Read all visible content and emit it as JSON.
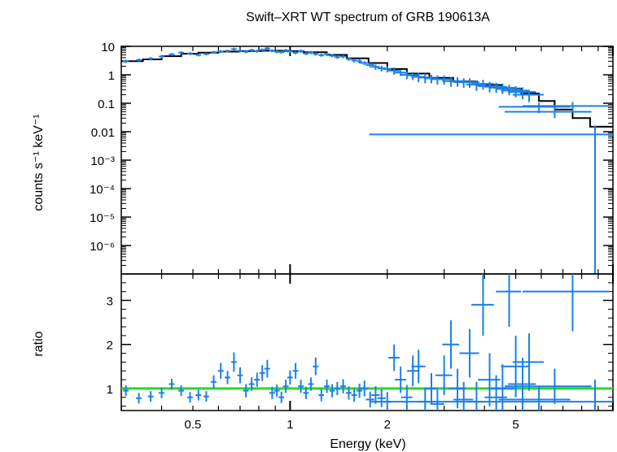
{
  "chart_data": [
    {
      "type": "scatter",
      "title": "Swift–XRT WT spectrum of GRB 190613A",
      "ylabel": "counts s⁻¹ keV⁻¹",
      "xlabel": "",
      "xscale": "log",
      "yscale": "log",
      "xlim": [
        0.3,
        10
      ],
      "ylim": [
        1e-07,
        10
      ],
      "y_tick_labels": [
        "10",
        "1",
        "0.1",
        "0.01",
        "10⁻³",
        "10⁻⁴",
        "10⁻⁵",
        "10⁻⁶"
      ],
      "y_tick_values": [
        10,
        1,
        0.1,
        0.01,
        0.001,
        0.0001,
        1e-05,
        1e-06
      ],
      "colors": {
        "data": "#1a7fe8",
        "model": "#000000"
      },
      "series": [
        {
          "kind": "data",
          "points": [
            [
              0.31,
              3.0,
              0.02,
              0.4
            ],
            [
              0.34,
              3.3,
              0.02,
              0.4
            ],
            [
              0.37,
              3.7,
              0.02,
              0.5
            ],
            [
              0.4,
              4.4,
              0.02,
              0.6
            ],
            [
              0.43,
              5.2,
              0.02,
              0.6
            ],
            [
              0.46,
              6.0,
              0.02,
              0.7
            ],
            [
              0.49,
              5.6,
              0.02,
              0.7
            ],
            [
              0.52,
              5.0,
              0.02,
              0.6
            ],
            [
              0.55,
              5.4,
              0.02,
              0.6
            ],
            [
              0.58,
              6.2,
              0.02,
              0.7
            ],
            [
              0.61,
              6.6,
              0.02,
              0.8
            ],
            [
              0.64,
              6.9,
              0.02,
              0.8
            ],
            [
              0.67,
              8.0,
              0.02,
              1.0
            ],
            [
              0.7,
              7.0,
              0.02,
              0.9
            ],
            [
              0.73,
              6.5,
              0.02,
              0.8
            ],
            [
              0.76,
              7.3,
              0.02,
              0.9
            ],
            [
              0.79,
              6.8,
              0.02,
              0.8
            ],
            [
              0.82,
              7.5,
              0.02,
              0.9
            ],
            [
              0.85,
              8.4,
              0.02,
              1.0
            ],
            [
              0.88,
              7.0,
              0.02,
              0.8
            ],
            [
              0.91,
              6.5,
              0.02,
              0.8
            ],
            [
              0.94,
              6.3,
              0.02,
              0.8
            ],
            [
              0.97,
              7.2,
              0.02,
              0.9
            ],
            [
              1.0,
              6.6,
              0.02,
              0.8
            ],
            [
              1.04,
              6.0,
              0.02,
              0.8
            ],
            [
              1.08,
              6.8,
              0.02,
              0.9
            ],
            [
              1.12,
              5.6,
              0.02,
              0.7
            ],
            [
              1.16,
              6.1,
              0.02,
              0.8
            ],
            [
              1.2,
              5.4,
              0.02,
              0.7
            ],
            [
              1.25,
              4.9,
              0.02,
              0.6
            ],
            [
              1.3,
              5.3,
              0.02,
              0.7
            ],
            [
              1.35,
              4.7,
              0.02,
              0.6
            ],
            [
              1.4,
              4.2,
              0.02,
              0.6
            ],
            [
              1.46,
              4.4,
              0.02,
              0.6
            ],
            [
              1.52,
              3.6,
              0.02,
              0.5
            ],
            [
              1.58,
              3.2,
              0.02,
              0.5
            ],
            [
              1.64,
              3.0,
              0.02,
              0.5
            ],
            [
              1.7,
              2.6,
              0.03,
              0.4
            ],
            [
              1.77,
              2.2,
              0.03,
              0.4
            ],
            [
              1.84,
              1.9,
              0.03,
              0.4
            ],
            [
              1.92,
              1.7,
              0.03,
              0.4
            ],
            [
              2.0,
              1.6,
              0.03,
              0.4
            ],
            [
              2.1,
              1.4,
              0.04,
              0.4
            ],
            [
              2.2,
              1.2,
              0.04,
              0.3
            ],
            [
              2.3,
              1.0,
              0.04,
              0.3
            ],
            [
              2.4,
              0.95,
              0.04,
              0.3
            ],
            [
              2.5,
              0.85,
              0.05,
              0.3
            ],
            [
              2.62,
              0.8,
              0.05,
              0.3
            ],
            [
              2.74,
              0.75,
              0.05,
              0.25
            ],
            [
              2.86,
              0.7,
              0.05,
              0.25
            ],
            [
              3.0,
              0.7,
              0.06,
              0.25
            ],
            [
              3.15,
              0.6,
              0.06,
              0.22
            ],
            [
              3.3,
              0.6,
              0.06,
              0.22
            ],
            [
              3.45,
              0.55,
              0.07,
              0.2
            ],
            [
              3.6,
              0.55,
              0.07,
              0.2
            ],
            [
              3.78,
              0.45,
              0.07,
              0.18
            ],
            [
              3.96,
              0.48,
              0.08,
              0.18
            ],
            [
              4.15,
              0.4,
              0.08,
              0.16
            ],
            [
              4.35,
              0.38,
              0.08,
              0.15
            ],
            [
              4.55,
              0.35,
              0.09,
              0.14
            ],
            [
              4.77,
              0.32,
              0.09,
              0.13
            ],
            [
              5.0,
              0.28,
              0.1,
              0.12
            ],
            [
              5.25,
              0.25,
              0.1,
              0.11
            ],
            [
              5.5,
              0.2,
              0.11,
              0.09
            ],
            [
              5.9,
              0.075,
              0.25,
              0.03
            ],
            [
              6.6,
              0.05,
              0.3,
              0.02
            ],
            [
              7.5,
              0.08,
              0.3,
              0.03
            ],
            [
              8.8,
              0.008,
              0.8,
              0.008
            ]
          ]
        },
        {
          "kind": "model",
          "steps": [
            [
              0.3,
              3.0
            ],
            [
              0.35,
              3.5
            ],
            [
              0.4,
              4.5
            ],
            [
              0.46,
              5.5
            ],
            [
              0.52,
              6.0
            ],
            [
              0.6,
              6.5
            ],
            [
              0.7,
              6.8
            ],
            [
              0.82,
              7.0
            ],
            [
              0.95,
              6.8
            ],
            [
              1.1,
              6.2
            ],
            [
              1.3,
              5.0
            ],
            [
              1.5,
              3.8
            ],
            [
              1.75,
              2.6
            ],
            [
              2.0,
              1.6
            ],
            [
              2.3,
              1.1
            ],
            [
              2.7,
              0.78
            ],
            [
              3.2,
              0.58
            ],
            [
              3.8,
              0.44
            ],
            [
              4.5,
              0.33
            ],
            [
              5.2,
              0.22
            ],
            [
              5.9,
              0.12
            ],
            [
              6.6,
              0.06
            ],
            [
              7.5,
              0.03
            ],
            [
              8.5,
              0.015
            ],
            [
              10.0,
              0.012
            ]
          ]
        }
      ]
    },
    {
      "type": "scatter",
      "title": "",
      "ylabel": "ratio",
      "xlabel": "Energy (keV)",
      "xscale": "log",
      "yscale": "linear",
      "xlim": [
        0.3,
        10
      ],
      "ylim": [
        0.5,
        3.6
      ],
      "x_tick_labels": [
        "0.5",
        "1",
        "2",
        "5"
      ],
      "x_tick_values": [
        0.5,
        1,
        2,
        5
      ],
      "y_tick_labels": [
        "1",
        "2",
        "3"
      ],
      "y_tick_values": [
        1,
        2,
        3
      ],
      "colors": {
        "data": "#1a7fe8",
        "reference": "#22dd22"
      },
      "reference_line": 1,
      "series": [
        {
          "kind": "data",
          "points": [
            [
              0.31,
              0.95,
              0.02,
              0.12
            ],
            [
              0.34,
              0.78,
              0.02,
              0.12
            ],
            [
              0.37,
              0.82,
              0.02,
              0.12
            ],
            [
              0.4,
              0.9,
              0.02,
              0.12
            ],
            [
              0.43,
              1.1,
              0.02,
              0.12
            ],
            [
              0.46,
              0.95,
              0.02,
              0.12
            ],
            [
              0.49,
              0.8,
              0.02,
              0.12
            ],
            [
              0.52,
              0.85,
              0.02,
              0.12
            ],
            [
              0.55,
              0.82,
              0.02,
              0.12
            ],
            [
              0.58,
              1.15,
              0.02,
              0.15
            ],
            [
              0.61,
              1.4,
              0.02,
              0.18
            ],
            [
              0.64,
              1.25,
              0.02,
              0.15
            ],
            [
              0.67,
              1.6,
              0.02,
              0.22
            ],
            [
              0.7,
              1.3,
              0.02,
              0.18
            ],
            [
              0.73,
              0.95,
              0.02,
              0.15
            ],
            [
              0.76,
              1.1,
              0.02,
              0.15
            ],
            [
              0.79,
              1.2,
              0.02,
              0.16
            ],
            [
              0.82,
              1.35,
              0.02,
              0.18
            ],
            [
              0.85,
              1.45,
              0.02,
              0.2
            ],
            [
              0.88,
              0.9,
              0.02,
              0.14
            ],
            [
              0.91,
              0.95,
              0.02,
              0.14
            ],
            [
              0.94,
              0.8,
              0.02,
              0.13
            ],
            [
              0.97,
              1.05,
              0.02,
              0.15
            ],
            [
              1.0,
              1.25,
              0.02,
              0.16
            ],
            [
              1.04,
              1.4,
              0.02,
              0.18
            ],
            [
              1.08,
              1.05,
              0.02,
              0.15
            ],
            [
              1.12,
              0.9,
              0.02,
              0.14
            ],
            [
              1.16,
              1.1,
              0.02,
              0.15
            ],
            [
              1.2,
              1.5,
              0.02,
              0.2
            ],
            [
              1.25,
              0.85,
              0.02,
              0.14
            ],
            [
              1.3,
              1.05,
              0.02,
              0.15
            ],
            [
              1.35,
              0.95,
              0.02,
              0.15
            ],
            [
              1.4,
              1.0,
              0.02,
              0.15
            ],
            [
              1.46,
              1.05,
              0.02,
              0.16
            ],
            [
              1.52,
              0.9,
              0.02,
              0.15
            ],
            [
              1.58,
              0.85,
              0.02,
              0.15
            ],
            [
              1.64,
              0.95,
              0.02,
              0.16
            ],
            [
              1.7,
              1.0,
              0.03,
              0.18
            ],
            [
              1.77,
              0.75,
              0.03,
              0.18
            ],
            [
              1.84,
              0.85,
              0.03,
              0.2
            ],
            [
              1.92,
              0.78,
              0.03,
              0.2
            ],
            [
              2.0,
              0.7,
              0.03,
              0.22
            ],
            [
              2.1,
              1.7,
              0.04,
              0.3
            ],
            [
              2.2,
              1.2,
              0.04,
              0.3
            ],
            [
              2.3,
              0.8,
              0.04,
              0.28
            ],
            [
              2.4,
              1.4,
              0.04,
              0.35
            ],
            [
              2.5,
              1.5,
              0.05,
              0.38
            ],
            [
              2.62,
              0.7,
              0.05,
              0.3
            ],
            [
              2.74,
              1.0,
              0.05,
              0.35
            ],
            [
              2.86,
              0.65,
              0.05,
              0.32
            ],
            [
              3.0,
              1.3,
              0.06,
              0.45
            ],
            [
              3.15,
              2.0,
              0.06,
              0.55
            ],
            [
              3.3,
              1.0,
              0.06,
              0.45
            ],
            [
              3.45,
              0.75,
              0.07,
              0.4
            ],
            [
              3.6,
              1.8,
              0.07,
              0.55
            ],
            [
              3.78,
              0.7,
              0.07,
              0.45
            ],
            [
              3.96,
              2.9,
              0.08,
              0.7
            ],
            [
              4.15,
              1.2,
              0.08,
              0.6
            ],
            [
              4.35,
              0.8,
              0.08,
              0.5
            ],
            [
              4.55,
              1.0,
              0.09,
              0.55
            ],
            [
              4.77,
              3.2,
              0.09,
              0.8
            ],
            [
              5.0,
              1.5,
              0.1,
              0.7
            ],
            [
              5.25,
              1.1,
              0.1,
              0.6
            ],
            [
              5.5,
              1.6,
              0.11,
              0.65
            ],
            [
              5.9,
              0.75,
              0.25,
              0.3
            ],
            [
              6.6,
              1.05,
              0.3,
              0.4
            ],
            [
              7.5,
              3.2,
              0.3,
              0.9
            ],
            [
              8.8,
              0.7,
              0.8,
              0.5
            ]
          ]
        }
      ]
    }
  ],
  "texts": {
    "title": "Swift–XRT WT spectrum of GRB 190613A",
    "top_ylabel": "counts s⁻¹ keV⁻¹",
    "bottom_ylabel": "ratio",
    "xlabel": "Energy (keV)"
  }
}
